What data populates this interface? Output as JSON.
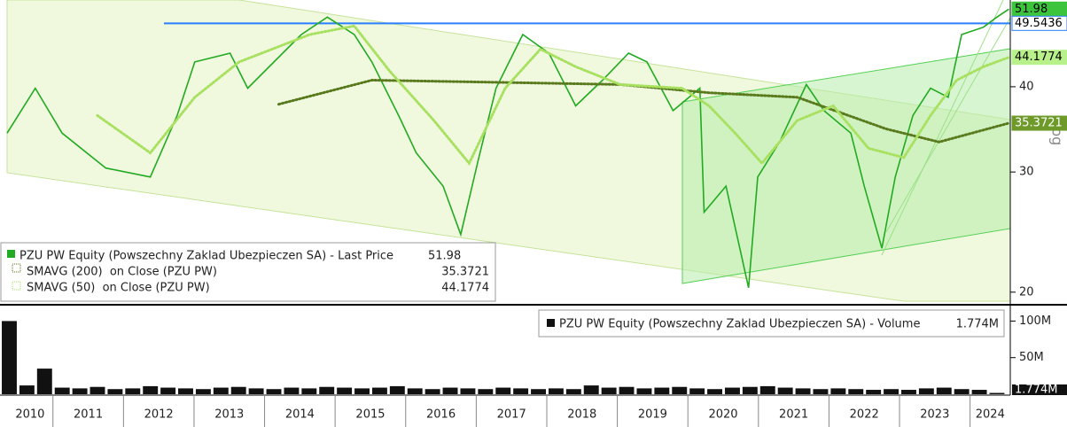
{
  "chart_data": [
    {
      "type": "line",
      "yscale": "log",
      "ylim": [
        19.4,
        53.6
      ],
      "yticks": [
        20,
        30,
        40
      ],
      "xlim": [
        2010.35,
        2024.57
      ],
      "xticks": [
        2011,
        2012,
        2013,
        2014,
        2015,
        2016,
        2017,
        2018,
        2019,
        2020,
        2021,
        2022,
        2023,
        2024
      ],
      "x_labels": [
        "2010",
        "2011",
        "2012",
        "2013",
        "2014",
        "2015",
        "2016",
        "2017",
        "2018",
        "2019",
        "2020",
        "2021",
        "2022",
        "2023",
        "2024"
      ],
      "axis_note": "Log",
      "legend": "bottom-left",
      "hline": {
        "value": 49.5436,
        "color": "#2a7fff"
      },
      "series": [
        {
          "name": "PZU PW Equity (Powszechny Zaklad Ubezpieczen SA) - Last Price",
          "color": "#22aa22",
          "x": [
            2010.35,
            2010.75,
            2011.13,
            2011.75,
            2012.38,
            2012.76,
            2013.01,
            2013.51,
            2013.76,
            2014.52,
            2014.89,
            2015.27,
            2015.52,
            2015.9,
            2016.15,
            2016.53,
            2016.78,
            2017.03,
            2017.28,
            2017.66,
            2018.03,
            2018.41,
            2018.79,
            2019.16,
            2019.42,
            2019.79,
            2020.17,
            2020.23,
            2020.54,
            2020.86,
            2020.99,
            2021.3,
            2021.68,
            2021.93,
            2022.31,
            2022.5,
            2022.75,
            2022.94,
            2023.19,
            2023.44,
            2023.69,
            2023.88,
            2024.19,
            2024.38,
            2024.55
          ],
          "values": [
            34.2,
            39.8,
            34.2,
            30.4,
            29.5,
            36.3,
            43.5,
            44.8,
            39.8,
            47.7,
            50.6,
            47.7,
            43.5,
            36.3,
            32.0,
            28.6,
            24.3,
            31.3,
            39.8,
            47.7,
            44.8,
            37.5,
            40.9,
            44.8,
            43.5,
            36.9,
            39.8,
            26.2,
            28.6,
            20.3,
            29.5,
            33.2,
            40.3,
            36.9,
            34.2,
            28.6,
            23.2,
            29.5,
            36.3,
            39.8,
            38.6,
            47.7,
            48.9,
            50.6,
            51.98
          ]
        },
        {
          "name": "SMAVG (200)  on Close (PZU PW)",
          "color": "#5a7a1e",
          "x": [
            2014.2,
            2015.52,
            2017.28,
            2019.04,
            2020.3,
            2021.55,
            2022.81,
            2023.56,
            2024.55
          ],
          "values": [
            37.7,
            40.9,
            40.6,
            40.3,
            39.2,
            38.6,
            34.7,
            33.2,
            35.3721
          ]
        },
        {
          "name": "SMAVG (50)  on Close (PZU PW)",
          "color": "#a8e060",
          "x": [
            2011.63,
            2012.38,
            2013.01,
            2013.64,
            2014.64,
            2015.27,
            2015.77,
            2016.4,
            2016.9,
            2017.41,
            2017.91,
            2018.41,
            2019.04,
            2019.92,
            2020.3,
            2020.67,
            2021.05,
            2021.55,
            2022.06,
            2022.56,
            2023.06,
            2023.44,
            2023.81,
            2024.19,
            2024.55
          ],
          "values": [
            36.3,
            32.0,
            38.6,
            43.5,
            47.7,
            49.1,
            42.2,
            35.7,
            30.9,
            39.8,
            45.4,
            42.8,
            40.3,
            39.8,
            37.5,
            34.2,
            30.9,
            35.7,
            37.5,
            32.5,
            31.5,
            36.3,
            40.9,
            42.8,
            44.1774
          ]
        }
      ]
    },
    {
      "type": "bar",
      "ylim": [
        0,
        115000000
      ],
      "yticks": [
        {
          "value": 100000000,
          "label": "100M"
        },
        {
          "value": 50000000,
          "label": "50M"
        }
      ],
      "last_label": {
        "value": 1774000,
        "label": "1.774M"
      },
      "series": [
        {
          "name": "PZU PW Equity (Powszechny Zaklad Ubezpieczen SA) - Volume",
          "color": "#111111",
          "x": [
            2010.4,
            2010.65,
            2010.9,
            2011.15,
            2011.4,
            2011.65,
            2011.9,
            2012.15,
            2012.4,
            2012.65,
            2012.9,
            2013.15,
            2013.4,
            2013.65,
            2013.9,
            2014.15,
            2014.4,
            2014.65,
            2014.9,
            2015.15,
            2015.4,
            2015.65,
            2015.9,
            2016.15,
            2016.4,
            2016.65,
            2016.9,
            2017.15,
            2017.4,
            2017.65,
            2017.9,
            2018.15,
            2018.4,
            2018.65,
            2018.9,
            2019.15,
            2019.4,
            2019.65,
            2019.9,
            2020.15,
            2020.4,
            2020.65,
            2020.9,
            2021.15,
            2021.4,
            2021.65,
            2021.9,
            2022.15,
            2022.4,
            2022.65,
            2022.9,
            2023.15,
            2023.4,
            2023.65,
            2023.9,
            2024.15,
            2024.4
          ],
          "values": [
            100000000,
            12000000,
            35000000,
            9000000,
            8000000,
            10000000,
            7000000,
            8000000,
            11000000,
            9000000,
            8000000,
            7000000,
            9000000,
            10000000,
            8000000,
            7000000,
            9000000,
            8000000,
            10000000,
            9000000,
            8000000,
            9000000,
            11000000,
            8000000,
            7000000,
            9000000,
            8000000,
            7000000,
            9000000,
            8000000,
            7000000,
            8000000,
            7000000,
            12000000,
            9000000,
            10000000,
            8000000,
            9000000,
            10000000,
            8000000,
            7000000,
            9000000,
            10000000,
            11000000,
            9000000,
            8000000,
            7000000,
            8000000,
            7000000,
            6000000,
            7000000,
            6000000,
            8000000,
            9000000,
            7000000,
            6000000,
            1774000
          ]
        }
      ]
    }
  ]
}
